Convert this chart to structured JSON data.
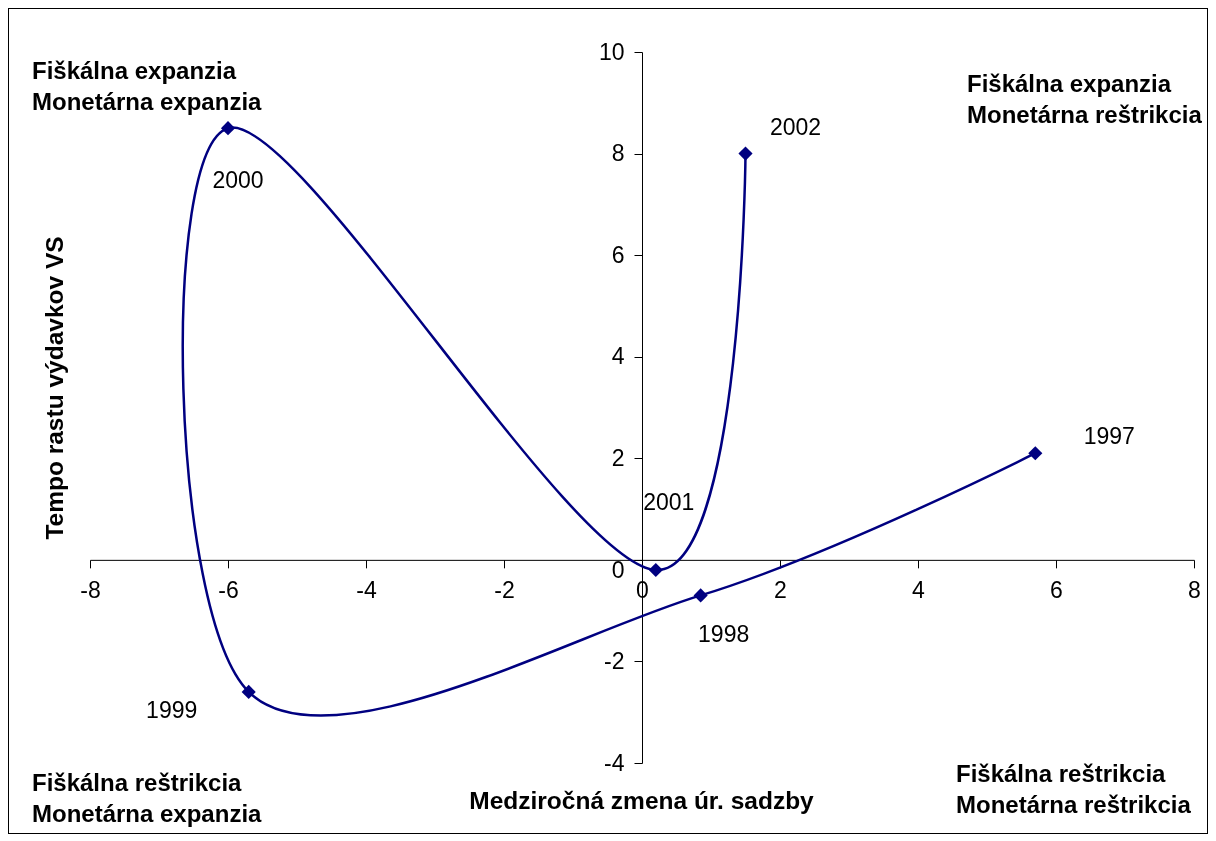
{
  "chart_data": {
    "type": "line",
    "xlabel": "Medziročná zmena úr. sadzby",
    "ylabel": "Tempo rastu výdavkov VS",
    "x": [
      5.7,
      0.85,
      -5.7,
      -6.0,
      0.2,
      1.5
    ],
    "series": [
      {
        "color": "#000080",
        "values": [
          2.1,
          -0.7,
          -2.6,
          8.5,
          -0.2,
          8.0
        ]
      }
    ],
    "marker": "diamond",
    "line_style": "solid",
    "xlim": [
      -8,
      8
    ],
    "xticks": [
      -8,
      -6,
      -4,
      -2,
      0,
      2,
      4,
      6,
      8
    ],
    "ylim": [
      -4,
      10
    ],
    "yticks": [
      -4,
      -2,
      0,
      2,
      4,
      6,
      8,
      10
    ],
    "annotations": [
      "Fiškálna expanzia\nMonetárna expanzia",
      "Fiškálna expanzia\nMonetárna reštrikcia",
      "Fiškálna reštrikcia\nMonetárna expanzia",
      "Fiškálna reštrikcia\nMonetárna reštrikcia",
      {
        "text": "1997",
        "x": 5.7,
        "y": 2.1
      },
      {
        "text": "1998",
        "x": 0.85,
        "y": -0.7
      },
      {
        "text": "1999",
        "x": -5.7,
        "y": -2.6
      },
      {
        "text": "2000",
        "x": -6.0,
        "y": 8.5
      },
      {
        "text": "2001",
        "x": 0.2,
        "y": -0.2
      },
      {
        "text": "2002",
        "x": 1.5,
        "y": 8.0
      }
    ]
  }
}
